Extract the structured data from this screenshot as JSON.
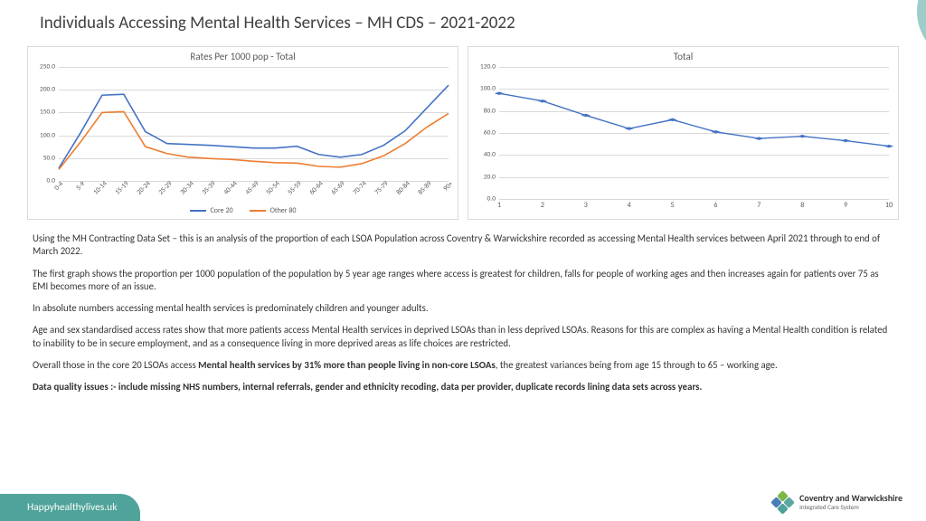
{
  "title": "Individuals Accessing Mental Health Services – MH CDS – 2021-2022",
  "chart1": {
    "title": "Rates Per 1000 pop - Total",
    "type": "line",
    "ylim": [
      0,
      250
    ],
    "ytick_step": 50,
    "categories": [
      "0-4",
      "5-9",
      "10-14",
      "15-19",
      "20-24",
      "25-29",
      "30-34",
      "35-39",
      "40-44",
      "45-49",
      "50-54",
      "55-59",
      "60-64",
      "65-69",
      "70-74",
      "75-79",
      "80-84",
      "85-89",
      "90+"
    ],
    "series": [
      {
        "name": "Core 20",
        "color": "#4472c4",
        "values": [
          28,
          105,
          188,
          190,
          108,
          82,
          80,
          78,
          75,
          72,
          72,
          76,
          58,
          52,
          58,
          78,
          110,
          160,
          210
        ]
      },
      {
        "name": "Other 80",
        "color": "#ed7d31",
        "values": [
          25,
          85,
          150,
          152,
          75,
          60,
          52,
          49,
          47,
          43,
          40,
          39,
          32,
          30,
          38,
          55,
          82,
          118,
          148
        ]
      }
    ],
    "label_fontsize": 8,
    "title_fontsize": 11,
    "background_color": "#ffffff",
    "grid_color": "#d9d9d9"
  },
  "chart2": {
    "title": "Total",
    "type": "line",
    "ylim": [
      0,
      120
    ],
    "ytick_step": 20,
    "categories": [
      "1",
      "2",
      "3",
      "4",
      "5",
      "6",
      "7",
      "8",
      "9",
      "10"
    ],
    "series": [
      {
        "name": "Total",
        "color": "#4472c4",
        "values": [
          96,
          89,
          76,
          64,
          72,
          61,
          55,
          57,
          53,
          48
        ]
      }
    ],
    "show_markers": true,
    "marker_size": 4,
    "label_fontsize": 8,
    "title_fontsize": 11
  },
  "paragraphs": [
    "Using the MH Contracting Data Set – this is an analysis of the proportion of each LSOA Population across Coventry & Warwickshire recorded as accessing Mental Health services between April 2021 through to end of March 2022.",
    "The first graph shows the proportion per 1000 population of the population by 5 year age ranges where access is greatest for children, falls for people of working ages and then increases again for patients over 75 as EMI becomes more of an issue.",
    "In absolute numbers accessing mental health services is predominately children and younger adults.",
    "Age and sex standardised access rates show that more patients access Mental Health services in deprived LSOAs than in less deprived LSOAs. Reasons for this are complex as having a Mental Health condition is related to inability to be in secure employment, and as a consequence living in more deprived areas as life choices are restricted."
  ],
  "para_rich_1": {
    "pre": "Overall those in the core 20 LSOAs access ",
    "bold": "Mental health services by 31% more than people living in non-core LSOAs",
    "post": ", the greatest variances being from age 15 through to 65 – working age."
  },
  "para_rich_2": {
    "bold": "Data quality issues :- include missing NHS numbers, internal referrals, gender and ethnicity recoding, data per provider, duplicate records lining data sets across years."
  },
  "footer": {
    "label": "Happyhealthylives.uk"
  },
  "logo": {
    "line1": "Coventry and Warwickshire",
    "line2": "Integrated Care System"
  },
  "accent_colors": {
    "teal": "#4fa39a",
    "teal_light": "#a6d4ce"
  }
}
